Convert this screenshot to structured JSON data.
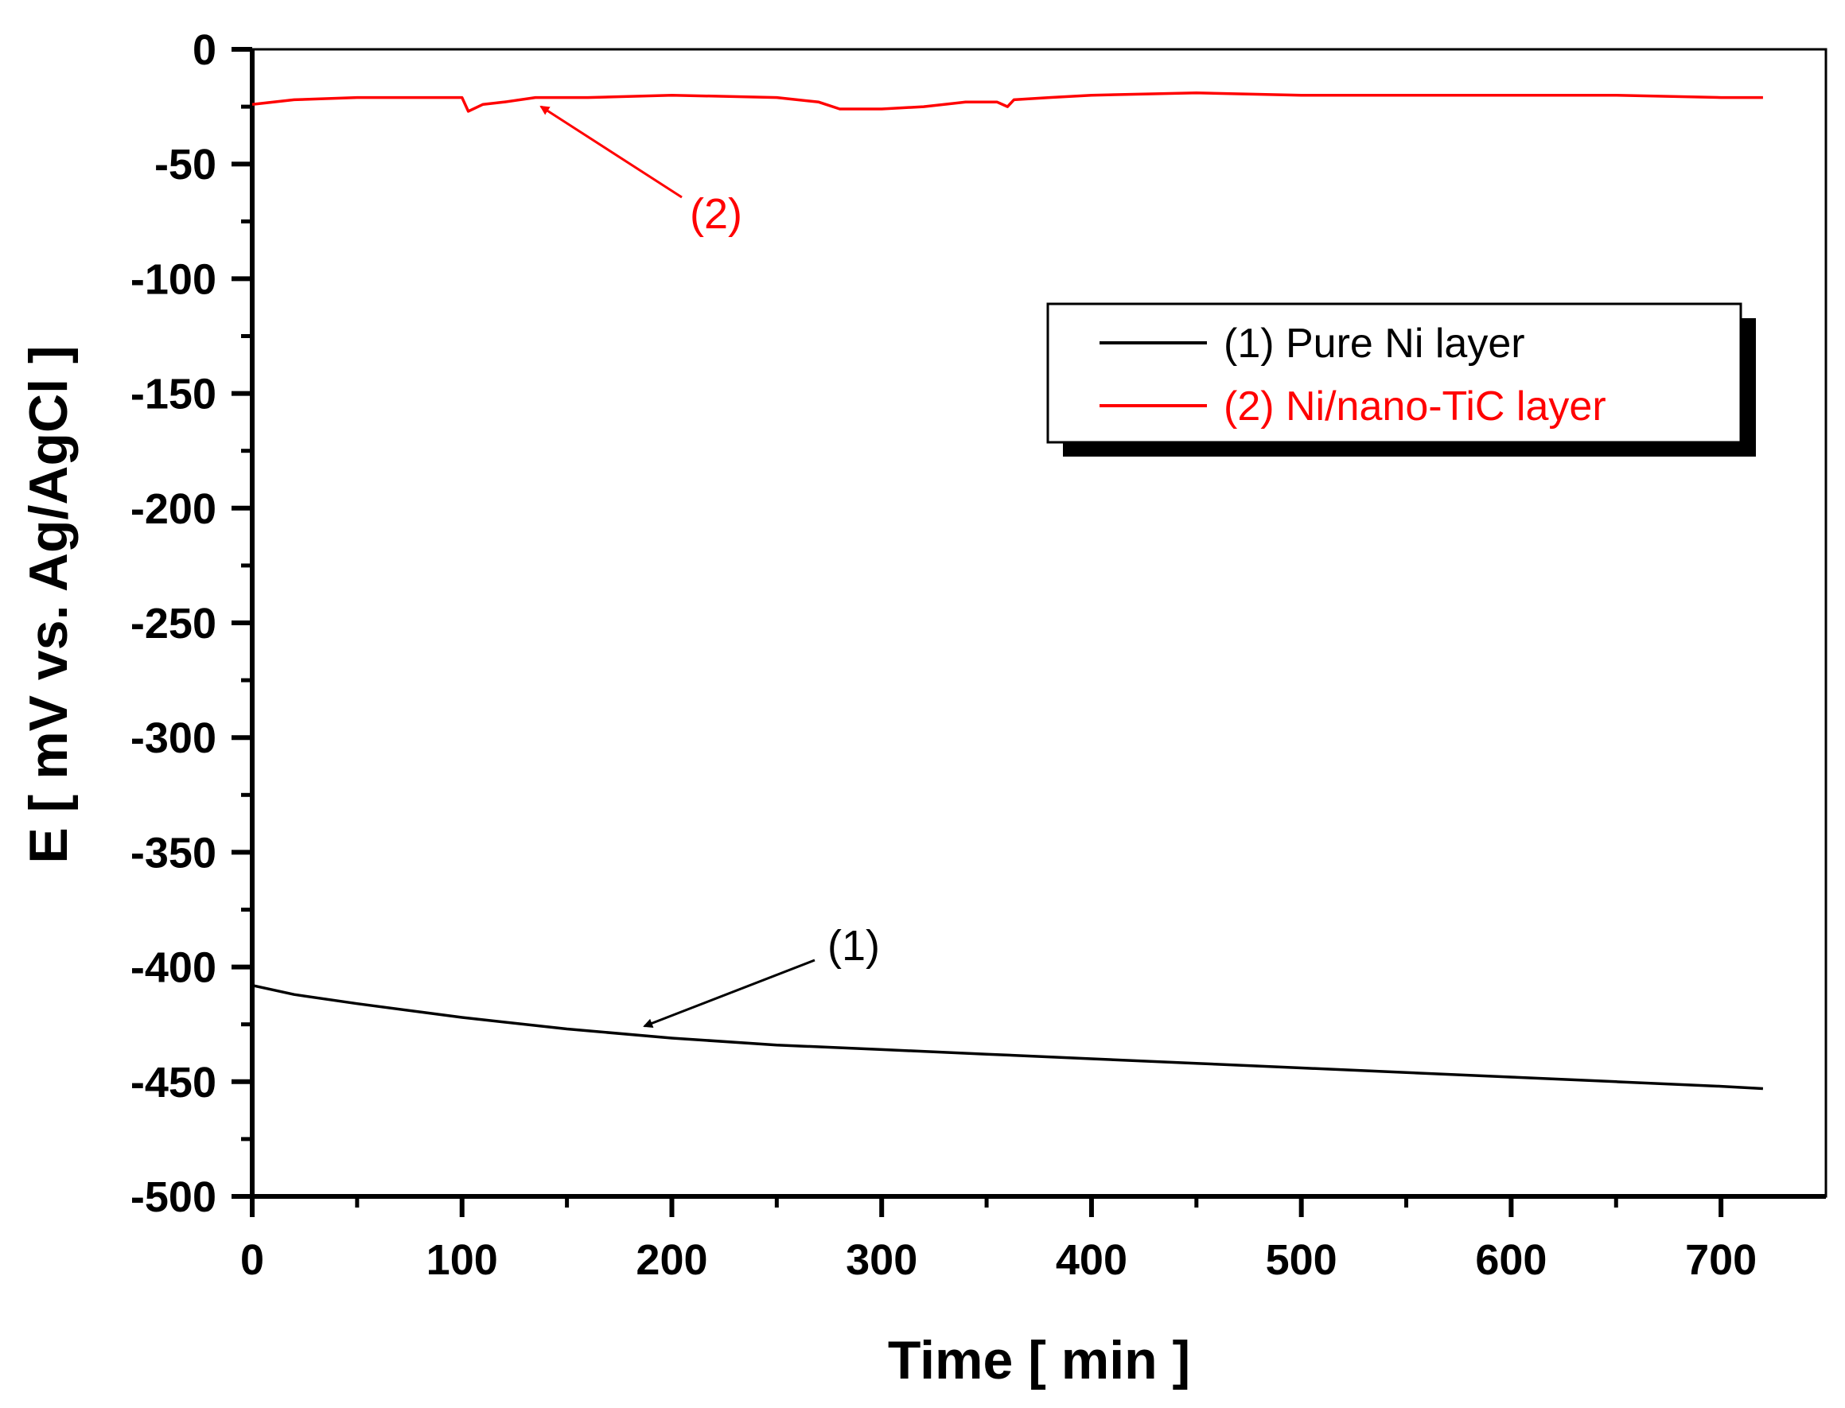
{
  "chart_data": {
    "type": "line",
    "xlabel": "Time [ min ]",
    "ylabel": "E [ mV vs. Ag/AgCl ]",
    "xlim": [
      0,
      750
    ],
    "ylim": [
      -500,
      0
    ],
    "x_ticks": [
      0,
      100,
      200,
      300,
      400,
      500,
      600,
      700
    ],
    "x_tick_labels": [
      "0",
      "100",
      "200",
      "300",
      "400",
      "500",
      "600",
      "700"
    ],
    "y_ticks": [
      0,
      -50,
      -100,
      -150,
      -200,
      -250,
      -300,
      -350,
      -400,
      -450,
      -500
    ],
    "y_tick_labels": [
      "0",
      "-50",
      "-100",
      "-150",
      "-200",
      "-250",
      "-300",
      "-350",
      "-400",
      "-450",
      "-500"
    ],
    "grid": false,
    "legend_position": "top-right",
    "series": [
      {
        "name": "(1) Pure Ni layer",
        "color": "#000000",
        "x": [
          0,
          20,
          50,
          100,
          150,
          200,
          250,
          300,
          350,
          400,
          450,
          500,
          550,
          600,
          650,
          700,
          720
        ],
        "y": [
          -408,
          -412,
          -416,
          -422,
          -427,
          -431,
          -434,
          -436,
          -438,
          -440,
          -442,
          -444,
          -446,
          -448,
          -450,
          -452,
          -453
        ]
      },
      {
        "name": "(2) Ni/nano-TiC layer",
        "color": "#ff0000",
        "x": [
          0,
          20,
          50,
          80,
          100,
          103,
          110,
          120,
          135,
          160,
          200,
          250,
          270,
          280,
          300,
          320,
          340,
          355,
          360,
          363,
          380,
          400,
          450,
          500,
          550,
          600,
          650,
          700,
          720
        ],
        "y": [
          -24,
          -22,
          -21,
          -21,
          -21,
          -27,
          -24,
          -23,
          -21,
          -21,
          -20,
          -21,
          -23,
          -26,
          -26,
          -25,
          -23,
          -23,
          -25,
          -22,
          -21,
          -20,
          -19,
          -20,
          -20,
          -20,
          -20,
          -21,
          -21
        ]
      }
    ],
    "annotations": [
      {
        "text": "(2)",
        "color": "#ff0000",
        "points_to_x": 135,
        "points_to_y": -21
      },
      {
        "text": "(1)",
        "color": "#000000",
        "points_to_x": 185,
        "points_to_y": -430
      }
    ]
  }
}
